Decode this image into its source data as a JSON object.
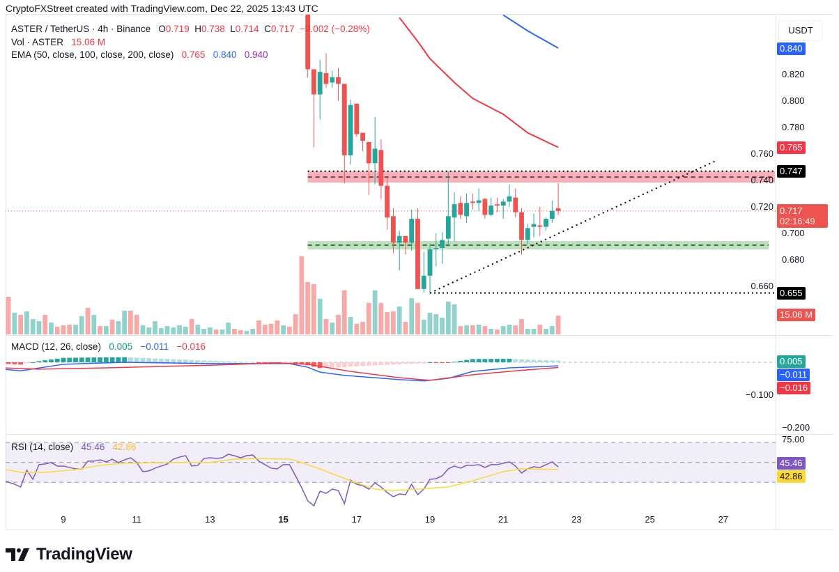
{
  "attribution": "CryptoFXStreet created with TradingView.com, Dec 22, 2025 13:43 UTC",
  "legend": {
    "symbol": "ASTER / TetherUS · 4h · Binance",
    "o_label": "O",
    "open": "0.719",
    "h_label": "H",
    "high": "0.738",
    "l_label": "L",
    "low": "0.714",
    "c_label": "C",
    "close": "0.717",
    "change": "−0.002 (−0.28%)",
    "vol_label": "Vol · ASTER",
    "vol_value": "15.06 M",
    "ema_label": "EMA (50, close, 100, close, 200, close)",
    "ema50": "0.765",
    "ema100": "0.840",
    "ema200": "0.940"
  },
  "macd_legend": {
    "label": "MACD (12, 26, close)",
    "hist": "0.005",
    "macd": "−0.011",
    "signal": "−0.016"
  },
  "rsi_legend": {
    "label": "RSI (14, close)",
    "rsi": "45.46",
    "ma": "42.86"
  },
  "price_axis": {
    "currency": "USDT",
    "ticks": [
      0.82,
      0.8,
      0.78,
      0.76,
      0.74,
      0.72,
      0.7,
      0.68,
      0.66
    ],
    "tick_labels": [
      "0.820",
      "0.800",
      "0.780",
      "0.760",
      "0.740",
      "0.720",
      "0.700",
      "0.680",
      "0.660"
    ],
    "badges": {
      "ema100": "0.840",
      "ema50": "0.765",
      "resistance": "0.747",
      "last_price": "0.717",
      "countdown": "02:16:49",
      "support_low": "0.655",
      "volume": "15.06 M"
    }
  },
  "macd_axis": {
    "ticks": [
      "−0.100",
      "−0.200"
    ],
    "badges": {
      "hist": "0.005",
      "macd": "−0.011",
      "signal": "−0.016"
    }
  },
  "rsi_axis": {
    "ticks": [
      "75.00"
    ],
    "badges": {
      "rsi": "45.46",
      "ma": "42.86"
    }
  },
  "time_axis": {
    "labels": [
      "9",
      "11",
      "13",
      "15",
      "17",
      "19",
      "21",
      "23",
      "25",
      "27"
    ],
    "bold_label": "15"
  },
  "brand": "TradingView",
  "colors": {
    "up": "#26a69a",
    "down": "#ef5350",
    "vol_up": "#92d2cc",
    "vol_down": "#f7a9a7",
    "ema50": "#f23645",
    "ema100": "#2962ff",
    "ema200": "#9c27b0",
    "macd": "#2962ff",
    "signal": "#f23645",
    "rsi": "#7e57c2",
    "rsi_ma": "#fdd835",
    "resistance_zone": "#f7a9b0",
    "support_zone": "#b6dfb4"
  },
  "chart_data": [
    {
      "type": "candlestick",
      "title": "ASTER / TetherUS · 4h · Binance",
      "x_ticks": [
        "9",
        "11",
        "13",
        "15",
        "17",
        "19",
        "21",
        "23",
        "25",
        "27"
      ],
      "ylim": [
        0.645,
        0.865
      ],
      "candle_fields": [
        "open",
        "high",
        "low",
        "close"
      ],
      "candles": [
        [
          0.87,
          0.88,
          0.818,
          0.824
        ],
        [
          0.824,
          0.824,
          0.765,
          0.805
        ],
        [
          0.805,
          0.831,
          0.786,
          0.822
        ],
        [
          0.821,
          0.836,
          0.81,
          0.813
        ],
        [
          0.814,
          0.823,
          0.81,
          0.818
        ],
        [
          0.818,
          0.825,
          0.8,
          0.813
        ],
        [
          0.813,
          0.813,
          0.738,
          0.759
        ],
        [
          0.759,
          0.801,
          0.752,
          0.797
        ],
        [
          0.798,
          0.798,
          0.773,
          0.775
        ],
        [
          0.776,
          0.776,
          0.762,
          0.77
        ],
        [
          0.769,
          0.769,
          0.729,
          0.753
        ],
        [
          0.753,
          0.788,
          0.737,
          0.764
        ],
        [
          0.763,
          0.771,
          0.726,
          0.736
        ],
        [
          0.736,
          0.742,
          0.703,
          0.712
        ],
        [
          0.713,
          0.719,
          0.685,
          0.693
        ],
        [
          0.693,
          0.702,
          0.672,
          0.698
        ],
        [
          0.698,
          0.698,
          0.684,
          0.693
        ],
        [
          0.693,
          0.718,
          0.687,
          0.711
        ],
        [
          0.711,
          0.719,
          0.658,
          0.658
        ],
        [
          0.658,
          0.686,
          0.655,
          0.668
        ],
        [
          0.668,
          0.692,
          0.654,
          0.688
        ],
        [
          0.688,
          0.7,
          0.675,
          0.689
        ],
        [
          0.689,
          0.701,
          0.677,
          0.695
        ],
        [
          0.696,
          0.747,
          0.69,
          0.713
        ],
        [
          0.712,
          0.731,
          0.694,
          0.722
        ],
        [
          0.723,
          0.728,
          0.711,
          0.714
        ],
        [
          0.713,
          0.73,
          0.708,
          0.723
        ],
        [
          0.724,
          0.73,
          0.718,
          0.723
        ],
        [
          0.723,
          0.734,
          0.717,
          0.725
        ],
        [
          0.726,
          0.727,
          0.711,
          0.714
        ],
        [
          0.714,
          0.727,
          0.713,
          0.721
        ],
        [
          0.722,
          0.727,
          0.716,
          0.721
        ],
        [
          0.721,
          0.726,
          0.711,
          0.724
        ],
        [
          0.724,
          0.737,
          0.72,
          0.728
        ],
        [
          0.727,
          0.734,
          0.712,
          0.716
        ],
        [
          0.716,
          0.719,
          0.684,
          0.695
        ],
        [
          0.695,
          0.707,
          0.692,
          0.704
        ],
        [
          0.705,
          0.715,
          0.697,
          0.707
        ],
        [
          0.706,
          0.72,
          0.698,
          0.705
        ],
        [
          0.705,
          0.712,
          0.702,
          0.711
        ],
        [
          0.711,
          0.725,
          0.708,
          0.717
        ],
        [
          0.719,
          0.738,
          0.714,
          0.717
        ]
      ],
      "volume_m": [
        15.1,
        30.2,
        17.4,
        15.7,
        18.5,
        12.3,
        10.6,
        15.7,
        9.5,
        6.2,
        7.3,
        7.8,
        7.8,
        14.6,
        21.3,
        15.7,
        6.7,
        6.7,
        11.8,
        10.6,
        19.0,
        19.0,
        15.7,
        7.3,
        5.6,
        10.6,
        5.0,
        6.7,
        5.6,
        7.3,
        6.2,
        12.3,
        7.8,
        4.5,
        5.6,
        3.9,
        3.9,
        9.5,
        4.5,
        3.4,
        2.8,
        4.5,
        11.2,
        7.8,
        8.4,
        11.2,
        7.3,
        6.2,
        16.2,
        62.7,
        42.0,
        40.3,
        28.6,
        12.3,
        9.5,
        15.7,
        35.3,
        14.0,
        8.4,
        10.1,
        25.2,
        35.3,
        25.2,
        17.9,
        18.5,
        22.4,
        10.1,
        29.1,
        25.2,
        11.8,
        17.4,
        16.2,
        13.4,
        26.3,
        24.1,
        6.7,
        7.3,
        7.3,
        7.8,
        6.7,
        4.5,
        3.9,
        6.7,
        7.8,
        7.3,
        12.3,
        4.5,
        4.5,
        7.8,
        4.5,
        6.7,
        15.06
      ],
      "volume_direction": [
        "d",
        "d",
        "u",
        "d",
        "u",
        "u",
        "u",
        "d",
        "u",
        "d",
        "d",
        "d",
        "u",
        "u",
        "d",
        "u",
        "d",
        "u",
        "d",
        "u",
        "u",
        "d",
        "d",
        "u",
        "u",
        "u",
        "u",
        "u",
        "u",
        "u",
        "u",
        "d",
        "u",
        "u",
        "u",
        "d",
        "u",
        "u",
        "d",
        "d",
        "u",
        "u",
        "d",
        "d",
        "d",
        "d",
        "u",
        "d",
        "d",
        "d",
        "d",
        "d",
        "u",
        "d",
        "u",
        "d",
        "d",
        "u",
        "d",
        "d",
        "d",
        "u",
        "d",
        "d",
        "d",
        "u",
        "d",
        "u",
        "d",
        "u",
        "u",
        "u",
        "u",
        "u",
        "u",
        "d",
        "u",
        "d",
        "u",
        "d",
        "u",
        "d",
        "u",
        "u",
        "d",
        "d",
        "u",
        "u",
        "d",
        "u",
        "u",
        "d"
      ],
      "ema50": [
        [
          "Dec 18 04:00",
          0.863
        ],
        [
          "Dec 18 16:00",
          0.845
        ],
        [
          "Dec 19 00:00",
          0.832
        ],
        [
          "Dec 19 16:00",
          0.814
        ],
        [
          "Dec 20 04:00",
          0.802
        ],
        [
          "Dec 21 00:00",
          0.79
        ],
        [
          "Dec 21 16:00",
          0.776
        ],
        [
          "Dec 22 12:00",
          0.765
        ]
      ],
      "ema100": [
        [
          "Dec 21 00:00",
          0.865
        ],
        [
          "Dec 21 16:00",
          0.853
        ],
        [
          "Dec 22 12:00",
          0.84
        ]
      ],
      "ema200_last": 0.94,
      "last_price": 0.717,
      "drawings": {
        "zone_start": "Dec 15 16:00",
        "resistance_zone": {
          "top": 0.7468,
          "bottom": 0.7384,
          "dashed": 0.7426,
          "dotted": 0.747
        },
        "support_zone": {
          "top": 0.6942,
          "bottom": 0.6879,
          "dashed": 0.6911
        },
        "low_line": {
          "start": "Dec 19 00:00",
          "price": 0.655
        },
        "trendline": {
          "from": [
            "Dec 19 00:00",
            0.655
          ],
          "to": [
            "Dec 26 20:00",
            0.7553
          ]
        }
      }
    },
    {
      "type": "line",
      "title": "MACD (12, 26, close)",
      "ylim": [
        -0.215,
        0.08
      ],
      "series": [
        {
          "name": "MACD",
          "points": [
            [
              "Dec 7 08:00",
              -0.021
            ],
            [
              "Dec 7 20:00",
              -0.026
            ],
            [
              "Dec 9 00:00",
              -0.006
            ],
            [
              "Dec 10 16:00",
              0.0
            ],
            [
              "Dec 13 00:00",
              -0.004
            ],
            [
              "Dec 15 04:00",
              -0.004
            ],
            [
              "Dec 15 16:00",
              -0.015
            ],
            [
              "Dec 16 00:00",
              -0.03
            ],
            [
              "Dec 16 16:00",
              -0.04
            ],
            [
              "Dec 17 12:00",
              -0.047
            ],
            [
              "Dec 18 04:00",
              -0.053
            ],
            [
              "Dec 18 20:00",
              -0.057
            ],
            [
              "Dec 19 12:00",
              -0.049
            ],
            [
              "Dec 20 04:00",
              -0.028
            ],
            [
              "Dec 21 04:00",
              -0.017
            ],
            [
              "Dec 22 12:00",
              -0.011
            ]
          ]
        },
        {
          "name": "Signal",
          "points": [
            [
              "Dec 7 08:00",
              -0.017
            ],
            [
              "Dec 8 08:00",
              -0.021
            ],
            [
              "Dec 10 04:00",
              -0.017
            ],
            [
              "Dec 13 00:00",
              -0.009
            ],
            [
              "Dec 14 20:00",
              -0.002
            ],
            [
              "Dec 15 16:00",
              -0.006
            ],
            [
              "Dec 16 20:00",
              -0.028
            ],
            [
              "Dec 18 04:00",
              -0.047
            ],
            [
              "Dec 19 00:00",
              -0.055
            ],
            [
              "Dec 20 04:00",
              -0.038
            ],
            [
              "Dec 21 08:00",
              -0.026
            ],
            [
              "Dec 22 12:00",
              -0.016
            ]
          ]
        }
      ]
    },
    {
      "type": "line",
      "title": "RSI (14, close)",
      "ylim": [
        0,
        77
      ],
      "levels": [
        70,
        50,
        30
      ],
      "rsi": [
        31.6,
        30.2,
        28.1,
        25.3,
        42.1,
        33.0,
        47.7,
        48.4,
        49.8,
        46.3,
        46.3,
        44.9,
        43.5,
        43.5,
        51.2,
        51.2,
        52.5,
        50.5,
        53.2,
        49.8,
        52.5,
        54.6,
        49.8,
        40.7,
        41.4,
        44.2,
        46.3,
        48.4,
        53.2,
        55.3,
        56.7,
        46.3,
        47.0,
        53.9,
        54.6,
        53.9,
        54.6,
        58.1,
        56.7,
        54.6,
        56.7,
        57.4,
        51.2,
        47.7,
        44.2,
        43.5,
        47.7,
        47.7,
        36.5,
        24.6,
        11.4,
        6.5,
        21.1,
        19.0,
        23.2,
        21.8,
        8.6,
        32.3,
        28.1,
        26.7,
        23.2,
        29.5,
        25.3,
        19.7,
        15.6,
        18.3,
        17.6,
        28.1,
        17.6,
        23.2,
        33.0,
        33.7,
        36.5,
        43.5,
        46.3,
        44.2,
        47.0,
        47.0,
        47.7,
        44.9,
        47.7,
        47.7,
        49.1,
        50.5,
        46.3,
        39.3,
        43.5,
        45.6,
        44.9,
        47.7,
        50.5,
        45.46
      ],
      "rsi_ma": [
        [
          "Dec 7 08:00",
          43.5
        ],
        [
          "Dec 7 20:00",
          40.0
        ],
        [
          "Dec 8 12:00",
          40.0
        ],
        [
          "Dec 9 08:00",
          42.8
        ],
        [
          "Dec 10 00:00",
          47.0
        ],
        [
          "Dec 10 16:00",
          49.1
        ],
        [
          "Dec 12 00:00",
          49.8
        ],
        [
          "Dec 13 00:00",
          49.8
        ],
        [
          "Dec 13 16:00",
          53.2
        ],
        [
          "Dec 14 08:00",
          53.9
        ],
        [
          "Dec 15 04:00",
          53.2
        ],
        [
          "Dec 15 08:00",
          51.9
        ],
        [
          "Dec 15 20:00",
          45.6
        ],
        [
          "Dec 16 08:00",
          38.6
        ],
        [
          "Dec 16 20:00",
          31.6
        ],
        [
          "Dec 17 12:00",
          23.2
        ],
        [
          "Dec 18 00:00",
          21.8
        ],
        [
          "Dec 18 16:00",
          23.2
        ],
        [
          "Dec 19 12:00",
          25.3
        ],
        [
          "Dec 20 04:00",
          31.6
        ],
        [
          "Dec 21 00:00",
          40.7
        ],
        [
          "Dec 21 12:00",
          43.5
        ],
        [
          "Dec 22 12:00",
          42.86
        ]
      ]
    }
  ]
}
